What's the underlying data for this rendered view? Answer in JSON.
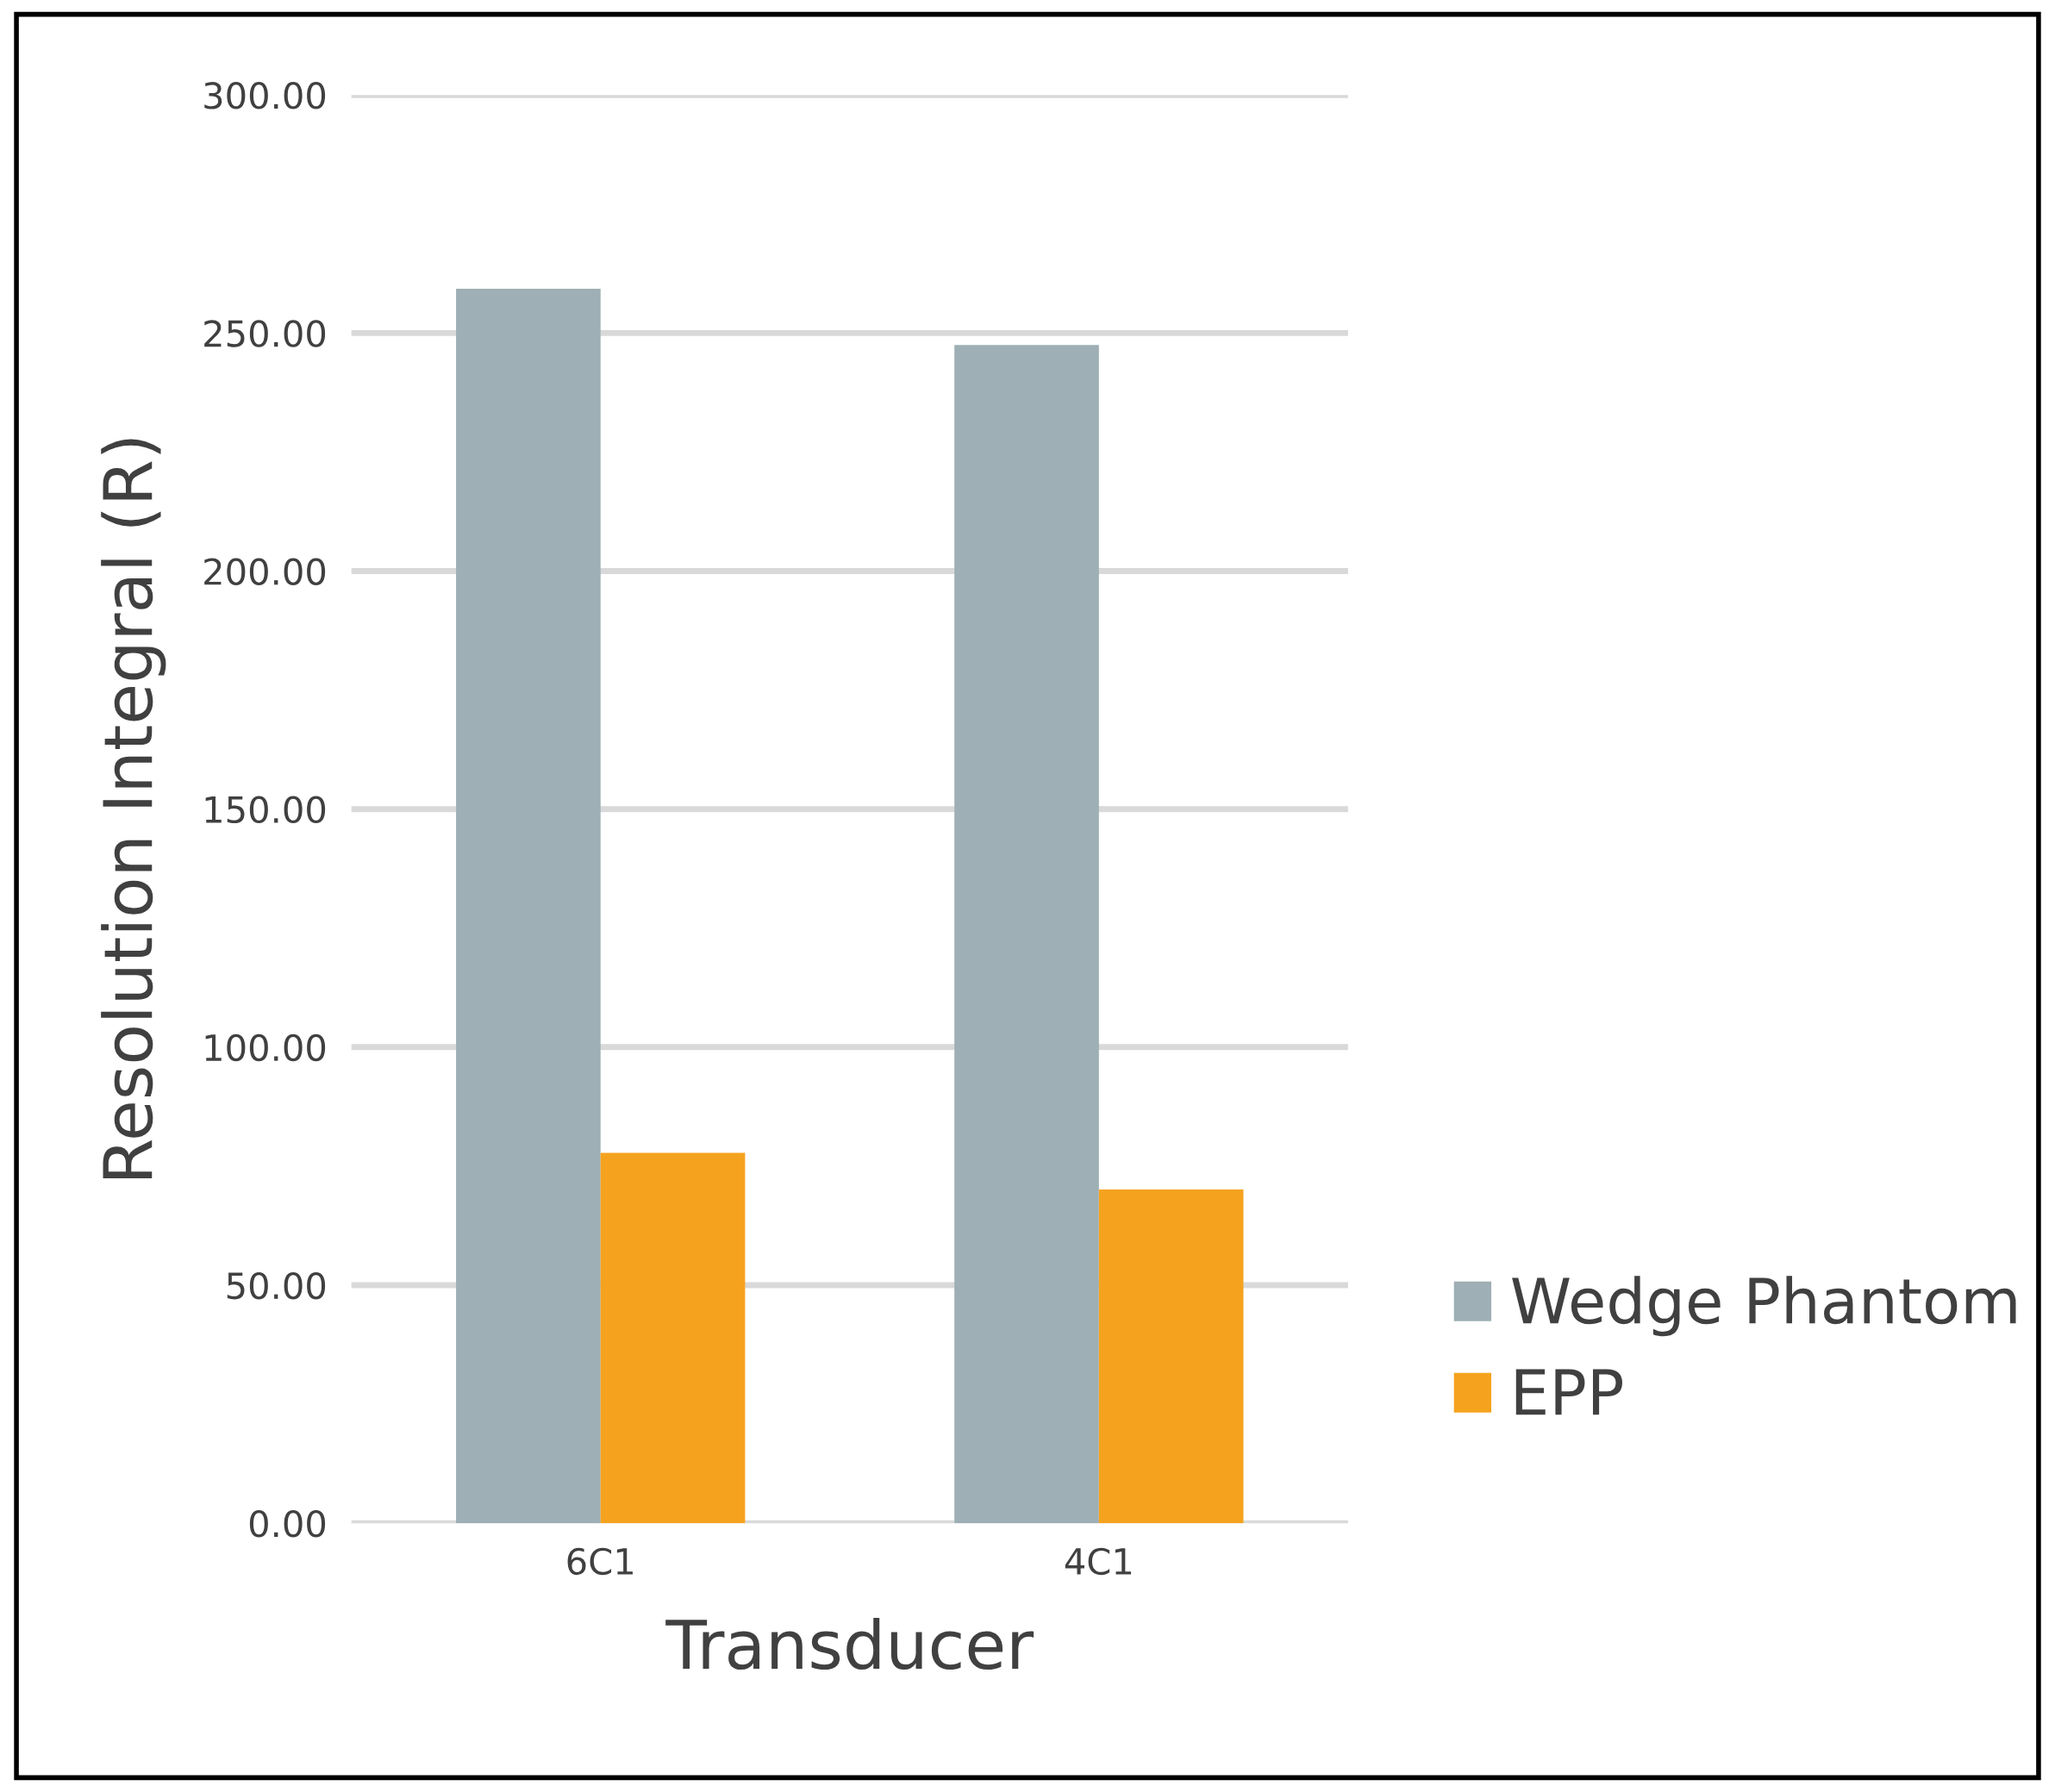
{
  "chart_data": {
    "type": "bar",
    "xlabel": "Transducer",
    "ylabel": "Resolution Integral (R)",
    "categories": [
      "6C1",
      "4C1"
    ],
    "series": [
      {
        "name": "Wedge Phantom",
        "color": "#9eafb5",
        "values": [
          259.3,
          247.5
        ]
      },
      {
        "name": "EPP",
        "color": "#f5a31e",
        "values": [
          77.8,
          70.1
        ]
      }
    ],
    "ylim": [
      0,
      300
    ],
    "yticks": [
      {
        "value": 0,
        "label": "0.00"
      },
      {
        "value": 50,
        "label": "50.00"
      },
      {
        "value": 100,
        "label": "100.00"
      },
      {
        "value": 150,
        "label": "150.00"
      },
      {
        "value": 200,
        "label": "200.00"
      },
      {
        "value": 250,
        "label": "250.00"
      },
      {
        "value": 300,
        "label": "300.00"
      }
    ],
    "grid": "y",
    "legend": "right"
  }
}
